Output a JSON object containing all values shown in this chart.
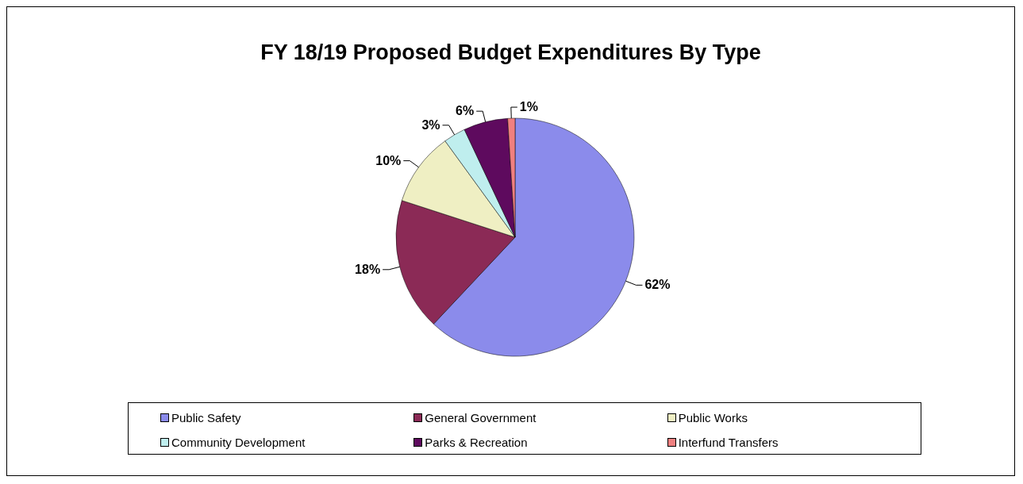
{
  "chart_data": {
    "type": "pie",
    "title": "FY 18/19 Proposed Budget Expenditures By Type",
    "categories": [
      "Public Safety",
      "General Government",
      "Public Works",
      "Community Development",
      "Parks & Recreation",
      "Interfund Transfers"
    ],
    "values": [
      62,
      18,
      10,
      3,
      6,
      1
    ],
    "colors": [
      "#8b8beb",
      "#8b2a56",
      "#efefc3",
      "#bfeeee",
      "#5e0a5e",
      "#f08080"
    ],
    "value_labels": [
      "62%",
      "18%",
      "10%",
      "3%",
      "6%",
      "1%"
    ],
    "legend": "bottom"
  }
}
